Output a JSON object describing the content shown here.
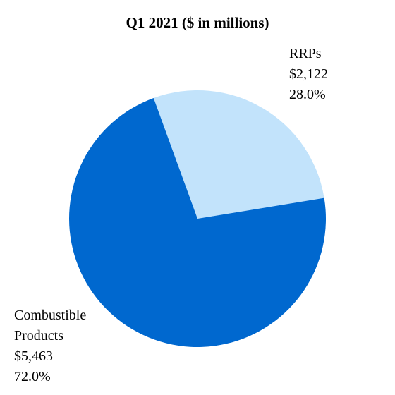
{
  "chart_data": {
    "type": "pie",
    "title": "Q1 2021 ($ in millions)",
    "slices": [
      {
        "name_lines": [
          "RRPs"
        ],
        "value": 2122,
        "value_label": "$2,122",
        "percent": 28.0,
        "percent_label": "28.0%",
        "color": "#c2e3fb"
      },
      {
        "name_lines": [
          "Combustible",
          "Products"
        ],
        "value": 5463,
        "value_label": "$5,463",
        "percent": 72.0,
        "percent_label": "72.0%",
        "color": "#0068cf"
      }
    ],
    "legend": "none",
    "grid": false
  }
}
